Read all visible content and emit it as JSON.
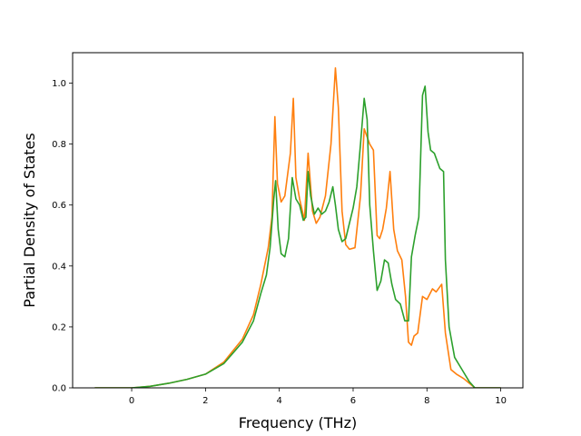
{
  "chart_data": {
    "type": "line",
    "xlabel": "Frequency (THz)",
    "ylabel": "Partial Density of States",
    "xlim": [
      -1.6,
      10.6
    ],
    "ylim": [
      0.0,
      1.1
    ],
    "xticks": [
      "0",
      "2",
      "4",
      "6",
      "8",
      "10"
    ],
    "xtick_values": [
      0,
      2,
      4,
      6,
      8,
      10
    ],
    "yticks": [
      "0.0",
      "0.2",
      "0.4",
      "0.6",
      "0.8",
      "1.0"
    ],
    "ytick_values": [
      0.0,
      0.2,
      0.4,
      0.6,
      0.8,
      1.0
    ],
    "grid": false,
    "legend": "none",
    "series": [
      {
        "color": "#ff7f0e",
        "x": [
          -1.0,
          0.0,
          0.5,
          1.0,
          1.5,
          2.0,
          2.5,
          3.0,
          3.3,
          3.5,
          3.7,
          3.8,
          3.88,
          3.95,
          4.05,
          4.15,
          4.3,
          4.38,
          4.45,
          4.55,
          4.68,
          4.78,
          4.9,
          5.0,
          5.1,
          5.25,
          5.4,
          5.52,
          5.6,
          5.7,
          5.8,
          5.9,
          6.05,
          6.2,
          6.3,
          6.45,
          6.55,
          6.65,
          6.72,
          6.8,
          6.9,
          7.0,
          7.1,
          7.2,
          7.32,
          7.42,
          7.5,
          7.58,
          7.65,
          7.75,
          7.88,
          8.0,
          8.15,
          8.25,
          8.4,
          8.5,
          8.65,
          8.8,
          9.0,
          9.15,
          9.3,
          10.0
        ],
        "y": [
          0.0,
          0.0,
          0.005,
          0.015,
          0.028,
          0.045,
          0.085,
          0.16,
          0.24,
          0.34,
          0.46,
          0.56,
          0.89,
          0.67,
          0.61,
          0.63,
          0.77,
          0.95,
          0.69,
          0.62,
          0.55,
          0.77,
          0.58,
          0.54,
          0.56,
          0.63,
          0.8,
          1.05,
          0.92,
          0.58,
          0.47,
          0.455,
          0.46,
          0.63,
          0.85,
          0.8,
          0.78,
          0.5,
          0.49,
          0.52,
          0.59,
          0.71,
          0.52,
          0.45,
          0.42,
          0.3,
          0.15,
          0.14,
          0.17,
          0.18,
          0.3,
          0.29,
          0.325,
          0.315,
          0.34,
          0.18,
          0.06,
          0.045,
          0.03,
          0.015,
          0.0,
          0.0
        ]
      },
      {
        "color": "#2ca02c",
        "x": [
          -1.0,
          0.0,
          0.5,
          1.0,
          1.5,
          2.0,
          2.5,
          3.0,
          3.3,
          3.5,
          3.65,
          3.75,
          3.85,
          3.9,
          3.97,
          4.05,
          4.15,
          4.25,
          4.35,
          4.45,
          4.55,
          4.65,
          4.72,
          4.78,
          4.85,
          4.95,
          5.05,
          5.15,
          5.25,
          5.35,
          5.45,
          5.52,
          5.6,
          5.7,
          5.8,
          5.9,
          6.0,
          6.1,
          6.2,
          6.3,
          6.38,
          6.45,
          6.55,
          6.65,
          6.75,
          6.85,
          6.95,
          7.05,
          7.15,
          7.28,
          7.4,
          7.5,
          7.58,
          7.68,
          7.78,
          7.88,
          7.95,
          8.03,
          8.1,
          8.2,
          8.35,
          8.45,
          8.5,
          8.6,
          8.75,
          8.95,
          9.15,
          9.3,
          10.0
        ],
        "y": [
          0.0,
          0.0,
          0.005,
          0.015,
          0.028,
          0.045,
          0.08,
          0.15,
          0.22,
          0.31,
          0.37,
          0.46,
          0.62,
          0.68,
          0.52,
          0.44,
          0.43,
          0.49,
          0.69,
          0.62,
          0.6,
          0.55,
          0.56,
          0.71,
          0.63,
          0.57,
          0.59,
          0.57,
          0.58,
          0.61,
          0.66,
          0.6,
          0.52,
          0.48,
          0.49,
          0.54,
          0.59,
          0.66,
          0.8,
          0.95,
          0.88,
          0.6,
          0.45,
          0.32,
          0.35,
          0.42,
          0.41,
          0.34,
          0.29,
          0.275,
          0.22,
          0.22,
          0.43,
          0.5,
          0.56,
          0.96,
          0.99,
          0.84,
          0.78,
          0.77,
          0.72,
          0.71,
          0.42,
          0.2,
          0.1,
          0.06,
          0.02,
          0.0,
          0.0
        ]
      }
    ]
  }
}
